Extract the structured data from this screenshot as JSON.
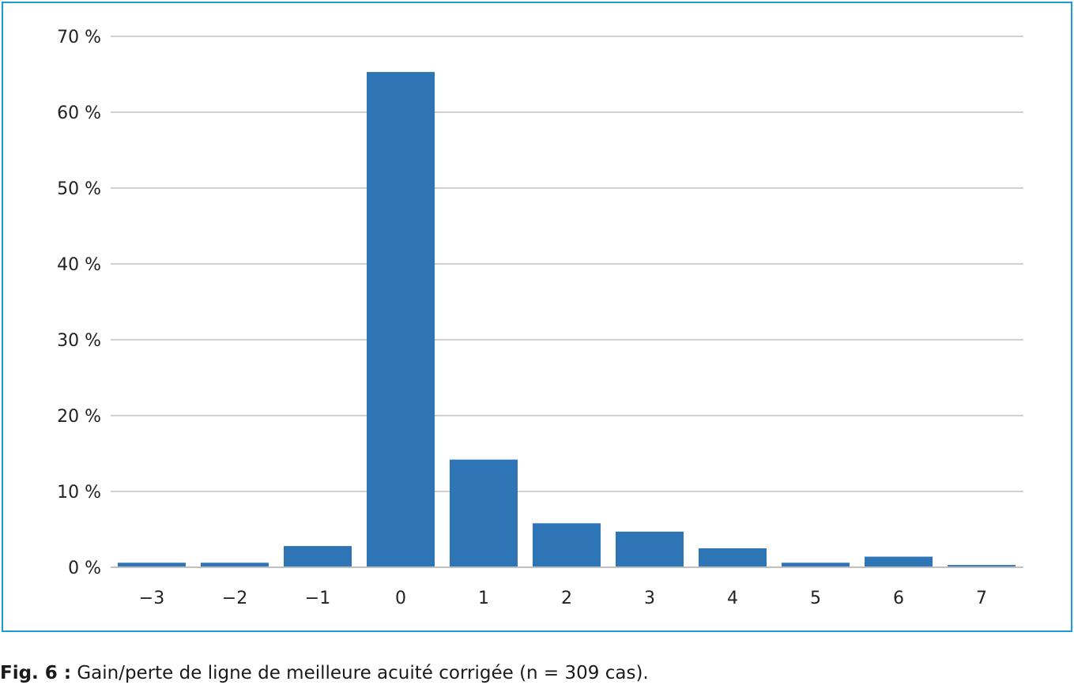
{
  "chart_data": {
    "type": "bar",
    "categories": [
      "−3",
      "−2",
      "−1",
      "0",
      "1",
      "2",
      "3",
      "4",
      "5",
      "6",
      "7"
    ],
    "values": [
      0.6,
      0.6,
      2.8,
      65.3,
      14.2,
      5.8,
      4.7,
      2.5,
      0.6,
      1.4,
      0.3
    ],
    "y_ticks": [
      "0 %",
      "10 %",
      "20 %",
      "30 %",
      "40 %",
      "50 %",
      "60 %",
      "70 %"
    ],
    "ylim": [
      0,
      70
    ],
    "grid": true,
    "bar_color": "#2e75b6",
    "title": "",
    "xlabel": "",
    "ylabel": ""
  },
  "colors": {
    "frame": "#1a9ad6",
    "grid": "#d0d0d0",
    "axis": "#bfbfbf"
  },
  "caption": {
    "label": "Fig. 6 :",
    "text": " Gain/perte de ligne de meilleure acuité corrigée (n = 309 cas)."
  }
}
